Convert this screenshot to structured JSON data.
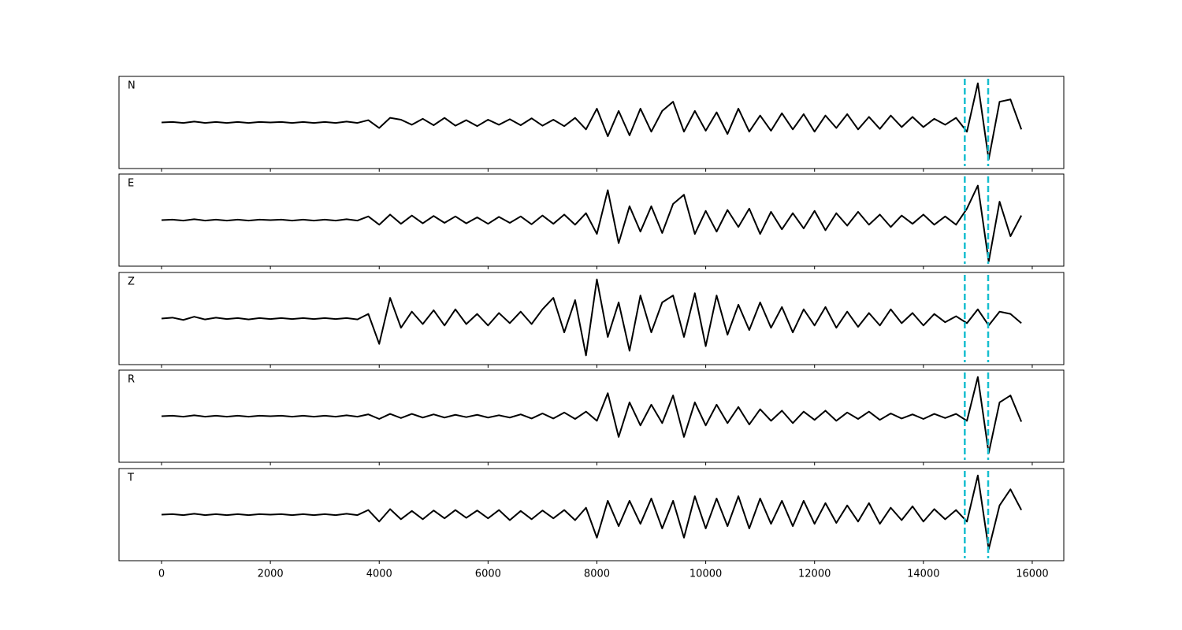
{
  "chart_data": {
    "type": "line",
    "x": [
      0,
      200,
      400,
      600,
      800,
      1000,
      1200,
      1400,
      1600,
      1800,
      2000,
      2200,
      2400,
      2600,
      2800,
      3000,
      3200,
      3400,
      3600,
      3800,
      4000,
      4200,
      4400,
      4600,
      4800,
      5000,
      5200,
      5400,
      5600,
      5800,
      6000,
      6200,
      6400,
      6600,
      6800,
      7000,
      7200,
      7400,
      7600,
      7800,
      8000,
      8200,
      8400,
      8600,
      8800,
      9000,
      9200,
      9400,
      9600,
      9800,
      10000,
      10200,
      10400,
      10600,
      10800,
      11000,
      11200,
      11400,
      11600,
      11800,
      12000,
      12200,
      12400,
      12600,
      12800,
      13000,
      13200,
      13400,
      13600,
      13800,
      14000,
      14200,
      14400,
      14600,
      14800,
      15000,
      15200,
      15400,
      15600,
      15800
    ],
    "xlim": [
      -782,
      16580
    ],
    "xticks": [
      0,
      2000,
      4000,
      6000,
      8000,
      10000,
      12000,
      14000,
      16000
    ],
    "ylim": [
      -1,
      1
    ],
    "vlines": [
      14760,
      15190
    ],
    "vline_color": "#17becf",
    "series": [
      {
        "name": "N",
        "color": "#000000",
        "values": [
          0,
          0.01,
          -0.01,
          0.02,
          -0.01,
          0.01,
          -0.01,
          0.01,
          -0.01,
          0.01,
          0,
          0.01,
          -0.01,
          0.01,
          -0.01,
          0.01,
          -0.01,
          0.02,
          -0.01,
          0.05,
          -0.12,
          0.1,
          0.06,
          -0.05,
          0.08,
          -0.06,
          0.1,
          -0.07,
          0.05,
          -0.08,
          0.06,
          -0.05,
          0.07,
          -0.06,
          0.09,
          -0.07,
          0.06,
          -0.08,
          0.1,
          -0.15,
          0.3,
          -0.3,
          0.25,
          -0.28,
          0.3,
          -0.2,
          0.25,
          0.45,
          -0.2,
          0.25,
          -0.18,
          0.22,
          -0.25,
          0.3,
          -0.2,
          0.15,
          -0.18,
          0.2,
          -0.15,
          0.18,
          -0.2,
          0.15,
          -0.12,
          0.18,
          -0.15,
          0.12,
          -0.14,
          0.15,
          -0.1,
          0.12,
          -0.1,
          0.08,
          -0.05,
          0.1,
          -0.2,
          0.85,
          -0.8,
          0.45,
          0.5,
          -0.15
        ]
      },
      {
        "name": "E",
        "color": "#000000",
        "values": [
          0,
          0.01,
          -0.01,
          0.02,
          -0.01,
          0.01,
          -0.01,
          0.01,
          -0.01,
          0.01,
          0,
          0.01,
          -0.01,
          0.01,
          -0.01,
          0.01,
          -0.01,
          0.02,
          -0.01,
          0.08,
          -0.1,
          0.12,
          -0.08,
          0.1,
          -0.07,
          0.09,
          -0.06,
          0.08,
          -0.07,
          0.06,
          -0.08,
          0.07,
          -0.06,
          0.08,
          -0.09,
          0.1,
          -0.08,
          0.12,
          -0.1,
          0.15,
          -0.3,
          0.65,
          -0.5,
          0.3,
          -0.25,
          0.3,
          -0.28,
          0.35,
          0.55,
          -0.3,
          0.2,
          -0.25,
          0.22,
          -0.15,
          0.25,
          -0.3,
          0.18,
          -0.2,
          0.15,
          -0.18,
          0.2,
          -0.22,
          0.15,
          -0.12,
          0.18,
          -0.1,
          0.12,
          -0.15,
          0.1,
          -0.08,
          0.12,
          -0.1,
          0.08,
          -0.1,
          0.25,
          0.75,
          -0.9,
          0.4,
          -0.35,
          0.1
        ]
      },
      {
        "name": "Z",
        "color": "#000000",
        "values": [
          0,
          0.02,
          -0.03,
          0.04,
          -0.02,
          0.02,
          -0.01,
          0.01,
          -0.02,
          0.01,
          -0.01,
          0.01,
          -0.01,
          0.01,
          -0.01,
          0.01,
          -0.01,
          0.01,
          -0.02,
          0.1,
          -0.55,
          0.45,
          -0.2,
          0.15,
          -0.12,
          0.18,
          -0.15,
          0.2,
          -0.12,
          0.1,
          -0.15,
          0.12,
          -0.1,
          0.15,
          -0.12,
          0.2,
          0.45,
          -0.3,
          0.4,
          -0.8,
          0.85,
          -0.4,
          0.35,
          -0.7,
          0.5,
          -0.3,
          0.35,
          0.5,
          -0.4,
          0.55,
          -0.6,
          0.5,
          -0.35,
          0.3,
          -0.25,
          0.35,
          -0.2,
          0.25,
          -0.3,
          0.2,
          -0.15,
          0.25,
          -0.2,
          0.15,
          -0.18,
          0.12,
          -0.15,
          0.2,
          -0.1,
          0.12,
          -0.15,
          0.1,
          -0.08,
          0.05,
          -0.1,
          0.2,
          -0.15,
          0.15,
          0.1,
          -0.1
        ]
      },
      {
        "name": "R",
        "color": "#000000",
        "values": [
          0,
          0.01,
          -0.01,
          0.02,
          -0.01,
          0.01,
          -0.01,
          0.01,
          -0.01,
          0.01,
          0,
          0.01,
          -0.01,
          0.01,
          -0.01,
          0.01,
          -0.01,
          0.02,
          -0.01,
          0.04,
          -0.06,
          0.05,
          -0.04,
          0.05,
          -0.03,
          0.04,
          -0.03,
          0.03,
          -0.02,
          0.03,
          -0.03,
          0.02,
          -0.03,
          0.04,
          -0.05,
          0.06,
          -0.05,
          0.08,
          -0.06,
          0.1,
          -0.1,
          0.5,
          -0.45,
          0.3,
          -0.2,
          0.25,
          -0.15,
          0.45,
          -0.45,
          0.3,
          -0.2,
          0.25,
          -0.15,
          0.2,
          -0.18,
          0.15,
          -0.1,
          0.12,
          -0.15,
          0.1,
          -0.08,
          0.12,
          -0.1,
          0.08,
          -0.06,
          0.1,
          -0.08,
          0.06,
          -0.05,
          0.04,
          -0.06,
          0.05,
          -0.04,
          0.05,
          -0.1,
          0.85,
          -0.8,
          0.3,
          0.45,
          -0.12
        ]
      },
      {
        "name": "T",
        "color": "#000000",
        "values": [
          0,
          0.01,
          -0.01,
          0.02,
          -0.01,
          0.01,
          -0.01,
          0.01,
          -0.01,
          0.01,
          0,
          0.01,
          -0.01,
          0.01,
          -0.01,
          0.01,
          -0.01,
          0.02,
          -0.01,
          0.1,
          -0.15,
          0.12,
          -0.1,
          0.08,
          -0.1,
          0.09,
          -0.08,
          0.1,
          -0.07,
          0.09,
          -0.08,
          0.1,
          -0.12,
          0.08,
          -0.1,
          0.09,
          -0.08,
          0.1,
          -0.12,
          0.15,
          -0.5,
          0.3,
          -0.25,
          0.3,
          -0.2,
          0.35,
          -0.3,
          0.3,
          -0.5,
          0.4,
          -0.3,
          0.35,
          -0.25,
          0.4,
          -0.3,
          0.35,
          -0.2,
          0.3,
          -0.25,
          0.3,
          -0.2,
          0.25,
          -0.18,
          0.2,
          -0.15,
          0.25,
          -0.2,
          0.15,
          -0.12,
          0.18,
          -0.15,
          0.12,
          -0.1,
          0.1,
          -0.15,
          0.85,
          -0.75,
          0.2,
          0.55,
          0.1
        ]
      }
    ]
  }
}
